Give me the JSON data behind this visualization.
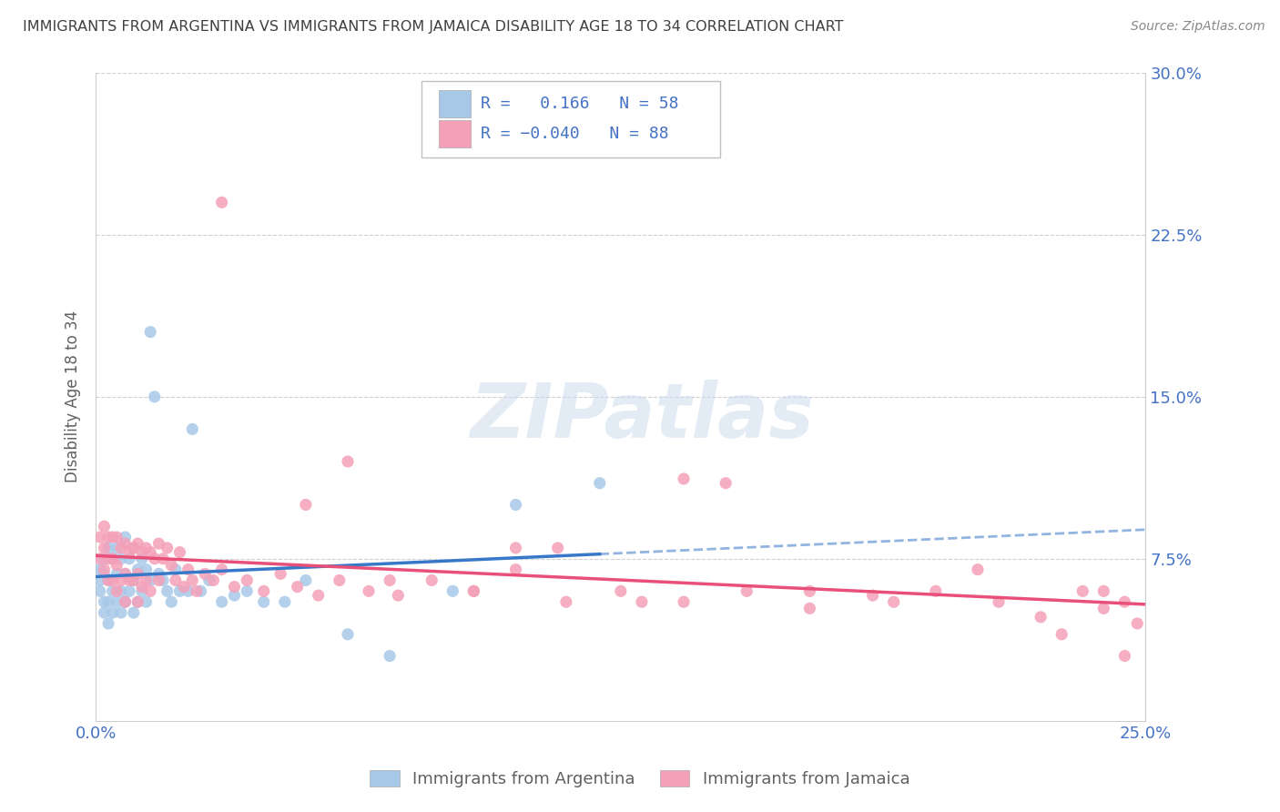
{
  "title": "IMMIGRANTS FROM ARGENTINA VS IMMIGRANTS FROM JAMAICA DISABILITY AGE 18 TO 34 CORRELATION CHART",
  "source": "Source: ZipAtlas.com",
  "ylabel_label": "Disability Age 18 to 34",
  "x_min": 0.0,
  "x_max": 0.25,
  "y_min": 0.0,
  "y_max": 0.3,
  "argentina_R": 0.166,
  "argentina_N": 58,
  "jamaica_R": -0.04,
  "jamaica_N": 88,
  "argentina_color": "#a8c8e8",
  "jamaica_color": "#f4a0b8",
  "argentina_line_color": "#3878c8",
  "jamaica_line_color": "#e8507a",
  "tick_label_color": "#4472c4",
  "title_color": "#404040",
  "grid_color": "#d0d0d0",
  "background_color": "#ffffff",
  "arg_x": [
    0.001,
    0.001,
    0.001,
    0.002,
    0.002,
    0.002,
    0.002,
    0.003,
    0.003,
    0.003,
    0.003,
    0.004,
    0.004,
    0.004,
    0.005,
    0.005,
    0.005,
    0.006,
    0.006,
    0.006,
    0.007,
    0.007,
    0.007,
    0.008,
    0.008,
    0.009,
    0.009,
    0.009,
    0.01,
    0.01,
    0.011,
    0.011,
    0.012,
    0.012,
    0.013,
    0.013,
    0.014,
    0.015,
    0.016,
    0.017,
    0.018,
    0.019,
    0.02,
    0.022,
    0.023,
    0.025,
    0.027,
    0.03,
    0.033,
    0.036,
    0.04,
    0.045,
    0.05,
    0.06,
    0.07,
    0.085,
    0.1,
    0.12
  ],
  "arg_y": [
    0.07,
    0.065,
    0.06,
    0.075,
    0.068,
    0.055,
    0.05,
    0.08,
    0.065,
    0.055,
    0.045,
    0.075,
    0.06,
    0.05,
    0.08,
    0.068,
    0.055,
    0.075,
    0.06,
    0.05,
    0.085,
    0.068,
    0.055,
    0.075,
    0.06,
    0.08,
    0.065,
    0.05,
    0.07,
    0.055,
    0.075,
    0.06,
    0.07,
    0.055,
    0.18,
    0.065,
    0.15,
    0.068,
    0.065,
    0.06,
    0.055,
    0.07,
    0.06,
    0.06,
    0.135,
    0.06,
    0.065,
    0.055,
    0.058,
    0.06,
    0.055,
    0.055,
    0.065,
    0.04,
    0.03,
    0.06,
    0.1,
    0.11
  ],
  "jam_x": [
    0.001,
    0.001,
    0.002,
    0.002,
    0.002,
    0.003,
    0.003,
    0.003,
    0.004,
    0.004,
    0.004,
    0.005,
    0.005,
    0.005,
    0.006,
    0.006,
    0.007,
    0.007,
    0.007,
    0.008,
    0.008,
    0.009,
    0.009,
    0.01,
    0.01,
    0.01,
    0.011,
    0.011,
    0.012,
    0.012,
    0.013,
    0.013,
    0.014,
    0.015,
    0.015,
    0.016,
    0.017,
    0.018,
    0.019,
    0.02,
    0.021,
    0.022,
    0.023,
    0.024,
    0.026,
    0.028,
    0.03,
    0.033,
    0.036,
    0.04,
    0.044,
    0.048,
    0.053,
    0.058,
    0.065,
    0.072,
    0.08,
    0.09,
    0.1,
    0.112,
    0.125,
    0.14,
    0.155,
    0.17,
    0.185,
    0.2,
    0.215,
    0.225,
    0.235,
    0.24,
    0.245,
    0.248,
    0.05,
    0.07,
    0.09,
    0.11,
    0.13,
    0.15,
    0.17,
    0.19,
    0.21,
    0.23,
    0.24,
    0.245,
    0.03,
    0.06,
    0.1,
    0.14
  ],
  "jam_y": [
    0.085,
    0.075,
    0.09,
    0.08,
    0.07,
    0.085,
    0.075,
    0.065,
    0.085,
    0.075,
    0.065,
    0.085,
    0.072,
    0.06,
    0.08,
    0.065,
    0.082,
    0.068,
    0.055,
    0.078,
    0.065,
    0.08,
    0.065,
    0.082,
    0.068,
    0.055,
    0.078,
    0.062,
    0.08,
    0.065,
    0.078,
    0.06,
    0.075,
    0.082,
    0.065,
    0.075,
    0.08,
    0.072,
    0.065,
    0.078,
    0.062,
    0.07,
    0.065,
    0.06,
    0.068,
    0.065,
    0.07,
    0.062,
    0.065,
    0.06,
    0.068,
    0.062,
    0.058,
    0.065,
    0.06,
    0.058,
    0.065,
    0.06,
    0.07,
    0.055,
    0.06,
    0.055,
    0.06,
    0.052,
    0.058,
    0.06,
    0.055,
    0.048,
    0.06,
    0.052,
    0.055,
    0.045,
    0.1,
    0.065,
    0.06,
    0.08,
    0.055,
    0.11,
    0.06,
    0.055,
    0.07,
    0.04,
    0.06,
    0.03,
    0.24,
    0.12,
    0.08,
    0.112
  ]
}
